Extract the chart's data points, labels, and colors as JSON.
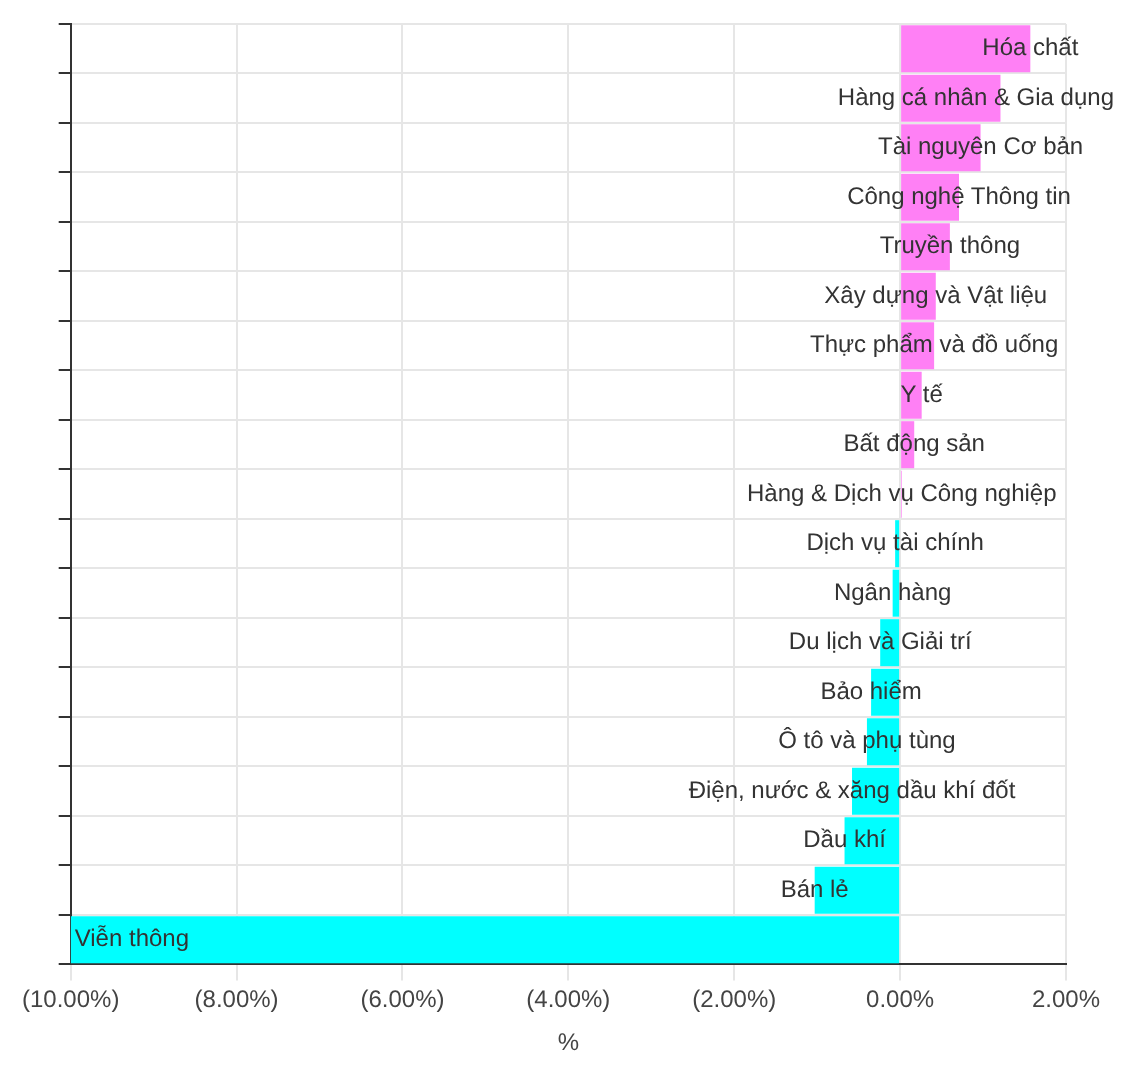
{
  "chart_data": {
    "type": "bar",
    "orientation": "horizontal",
    "xlabel": "%",
    "categories": [
      "Hóa chất",
      "Hàng cá nhân & Gia dụng",
      "Tài nguyên Cơ bản",
      "Công nghệ Thông tin",
      "Truyền thông",
      "Xây dựng và Vật liệu",
      "Thực phẩm và đồ uống",
      "Y tế",
      "Bất động sản",
      "Hàng & Dịch vụ Công nghiệp",
      "Dịch vụ tài chính",
      "Ngân hàng",
      "Du lịch và Giải trí",
      "Bảo hiểm",
      "Ô tô và phụ tùng",
      "Điện, nước & xăng dầu khí đốt",
      "Dầu khí",
      "Bán lẻ",
      "Viễn thông"
    ],
    "values": [
      1.57,
      1.21,
      0.97,
      0.71,
      0.6,
      0.43,
      0.41,
      0.26,
      0.17,
      0.02,
      -0.06,
      -0.09,
      -0.24,
      -0.35,
      -0.4,
      -0.58,
      -0.67,
      -1.03,
      -10
    ],
    "colors": [
      "#ff80f5",
      "#ff80f5",
      "#ff80f5",
      "#ff80f5",
      "#ff80f5",
      "#ff80f5",
      "#ff80f5",
      "#ff80f5",
      "#ff80f5",
      "#ff80f5",
      "#00ffff",
      "#00ffff",
      "#00ffff",
      "#00ffff",
      "#00ffff",
      "#00ffff",
      "#00ffff",
      "#00ffff",
      "#00ffff"
    ],
    "xlim": [
      -10,
      2
    ],
    "xticks": [
      {
        "value": -10,
        "label": "(10.00%)"
      },
      {
        "value": -8,
        "label": "(8.00%)"
      },
      {
        "value": -6,
        "label": "(6.00%)"
      },
      {
        "value": -4,
        "label": "(4.00%)"
      },
      {
        "value": -2,
        "label": "(2.00%)"
      },
      {
        "value": 0,
        "label": "0.00%"
      },
      {
        "value": 2,
        "label": "2.00%"
      }
    ],
    "grid": true,
    "tick_labels": "x"
  }
}
